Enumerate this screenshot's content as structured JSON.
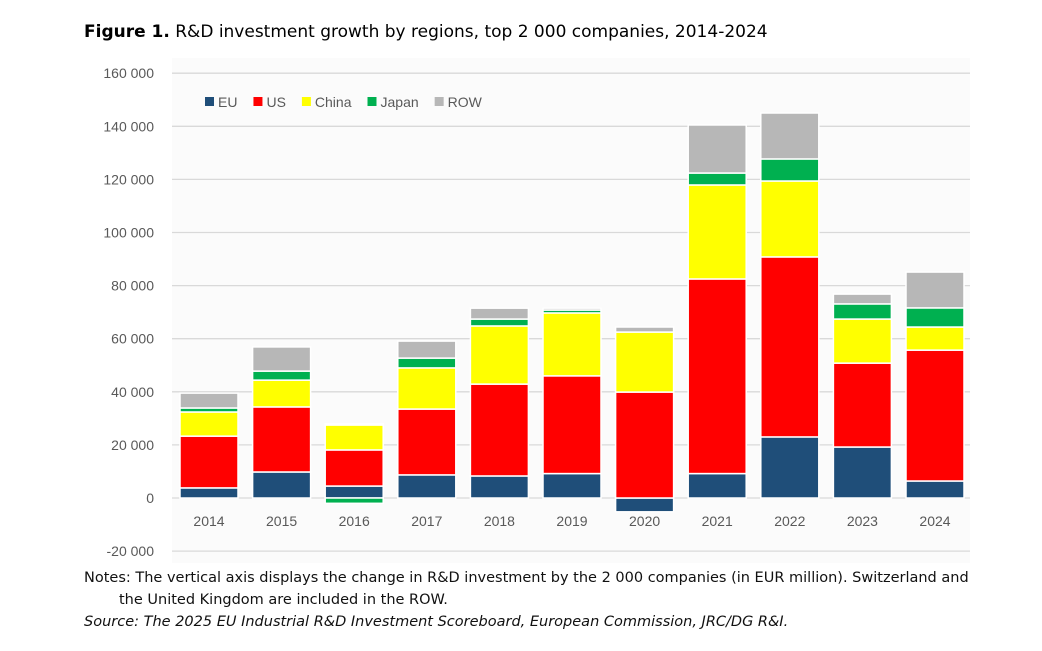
{
  "title": {
    "label": "Figure 1.",
    "text": "R&D investment growth by regions, top 2 000 companies, 2014-2024"
  },
  "notes": {
    "line1": "Notes: The vertical axis displays the change in R&D investment by the 2 000 companies (in EUR million). Switzerland and",
    "line2": "the United Kingdom are included in the ROW.",
    "source": "Source: The 2025 EU Industrial R&D Investment Scoreboard, European Commission, JRC/DG R&I."
  },
  "chart_data": {
    "type": "bar",
    "stacked": true,
    "title": "",
    "xlabel": "",
    "ylabel": "",
    "ylim": [
      -20000,
      160000
    ],
    "yticks": [
      -20000,
      0,
      20000,
      40000,
      60000,
      80000,
      100000,
      120000,
      140000,
      160000
    ],
    "ytick_labels": [
      "-20 000",
      "0",
      "20 000",
      "40 000",
      "60 000",
      "80 000",
      "100 000",
      "120 000",
      "140 000",
      "160 000"
    ],
    "grid": true,
    "legend_position": "top-left",
    "categories": [
      "2014",
      "2015",
      "2016",
      "2017",
      "2018",
      "2019",
      "2020",
      "2021",
      "2022",
      "2023",
      "2024"
    ],
    "series": [
      {
        "name": "EU",
        "color": "#1f4e79",
        "values": [
          3800,
          9800,
          4500,
          8700,
          8300,
          9200,
          -5200,
          9200,
          23000,
          19200,
          6400
        ]
      },
      {
        "name": "US",
        "color": "#ff0000",
        "values": [
          19500,
          24500,
          13600,
          24800,
          34600,
          36800,
          39900,
          73300,
          67800,
          31600,
          49300
        ]
      },
      {
        "name": "China",
        "color": "#ffff00",
        "values": [
          9100,
          10100,
          9400,
          15500,
          21900,
          23700,
          22600,
          35400,
          28600,
          16600,
          8700
        ]
      },
      {
        "name": "Japan",
        "color": "#00b050",
        "values": [
          1500,
          3400,
          -2000,
          3700,
          2600,
          1100,
          0,
          4500,
          8300,
          5700,
          7200
        ]
      },
      {
        "name": "ROW",
        "color": "#b7b7b7",
        "values": [
          5600,
          9100,
          500,
          6400,
          4100,
          700,
          1900,
          18100,
          17300,
          3700,
          13500
        ]
      }
    ]
  }
}
